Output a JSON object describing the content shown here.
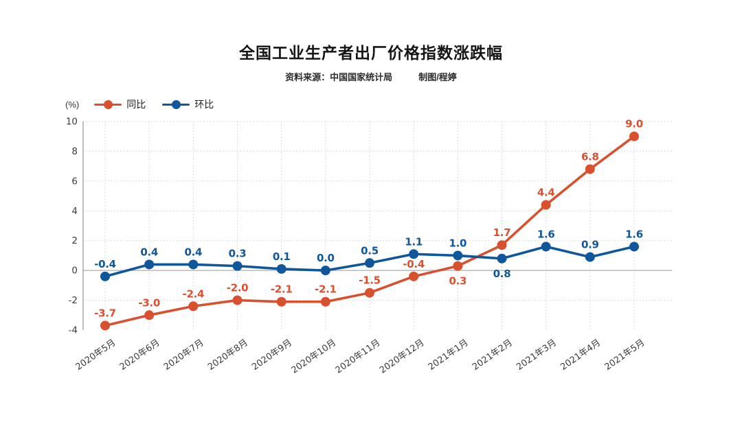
{
  "header": {
    "title": "全国工业生产者出厂价格指数涨跌幅",
    "source": "资料来源：中国国家统计局",
    "credit": "制图/程婷"
  },
  "legend": {
    "unit_label": "(%)",
    "items": [
      {
        "label": "同比",
        "color": "#d9502e"
      },
      {
        "label": "环比",
        "color": "#10569b"
      }
    ]
  },
  "chart_data": {
    "type": "line",
    "title": "全国工业生产者出厂价格指数涨跌幅",
    "ylabel": "(%)",
    "xlabel": "",
    "ylim": [
      -4,
      10
    ],
    "yticks": [
      10,
      8,
      6,
      4,
      2,
      0,
      -2,
      -4
    ],
    "grid": "dotted",
    "legend_position": "top-left",
    "categories": [
      "2020年5月",
      "2020年6月",
      "2020年7月",
      "2020年8月",
      "2020年9月",
      "2020年10月",
      "2020年11月",
      "2020年12月",
      "2021年1月",
      "2021年2月",
      "2021年3月",
      "2021年4月",
      "2021年5月"
    ],
    "series": [
      {
        "name": "同比",
        "color": "#d9502e",
        "values": [
          -3.7,
          -3.0,
          -2.4,
          -2.0,
          -2.1,
          -2.1,
          -1.5,
          -0.4,
          0.3,
          1.7,
          4.4,
          6.8,
          9.0
        ],
        "labels_below": [
          8
        ]
      },
      {
        "name": "环比",
        "color": "#10569b",
        "values": [
          -0.4,
          0.4,
          0.4,
          0.3,
          0.1,
          0.0,
          0.5,
          1.1,
          1.0,
          0.8,
          1.6,
          0.9,
          1.6
        ],
        "labels_below": [
          9
        ]
      }
    ]
  }
}
